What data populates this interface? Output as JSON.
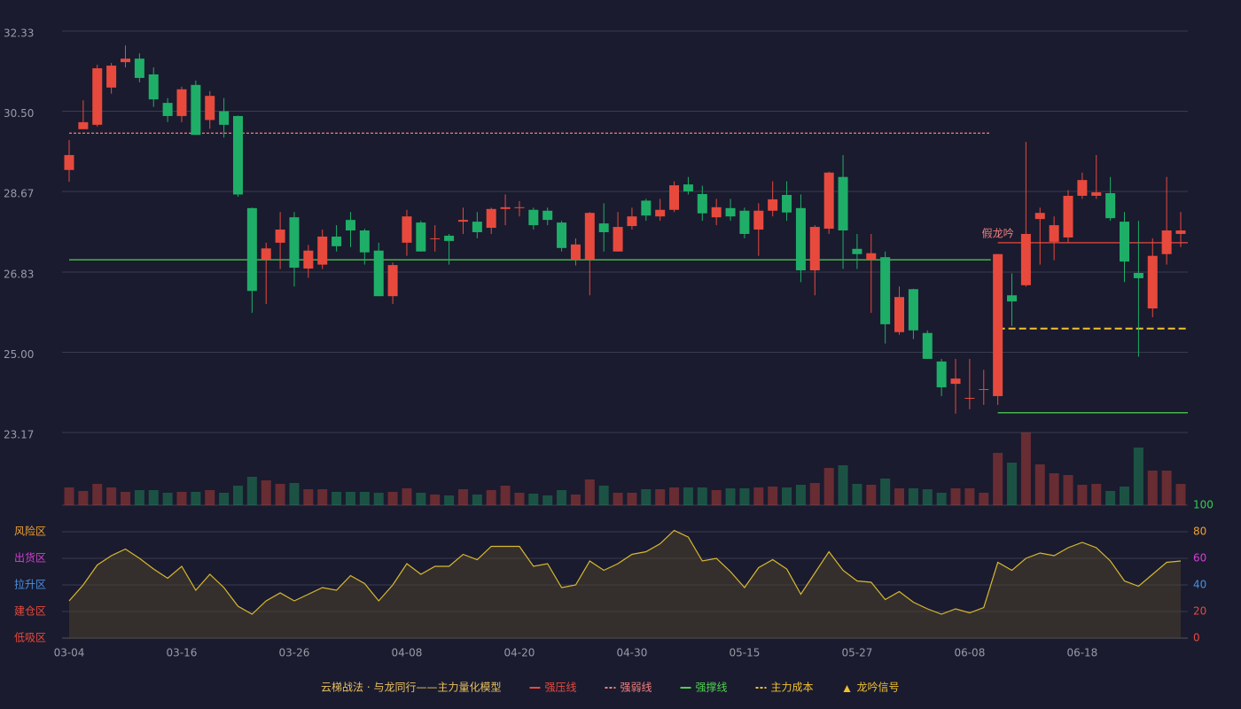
{
  "chart_data": {
    "type": "candlestick",
    "categories": [
      "03-04",
      null,
      null,
      null,
      null,
      null,
      null,
      null,
      "03-16",
      null,
      null,
      null,
      null,
      null,
      null,
      null,
      "03-26",
      null,
      null,
      null,
      null,
      null,
      null,
      null,
      "04-08",
      null,
      null,
      null,
      null,
      null,
      null,
      null,
      "04-20",
      null,
      null,
      null,
      null,
      null,
      null,
      null,
      "04-30",
      null,
      null,
      null,
      null,
      null,
      null,
      null,
      "05-15",
      null,
      null,
      null,
      null,
      null,
      null,
      null,
      "05-27",
      null,
      null,
      null,
      null,
      null,
      null,
      null,
      "06-08",
      null,
      null,
      null,
      null,
      null,
      null,
      null,
      "06-18",
      null,
      null,
      null,
      null,
      null,
      null,
      null
    ],
    "open": [
      29.16,
      30.09,
      30.19,
      31.04,
      31.62,
      31.7,
      31.34,
      30.69,
      30.39,
      31.1,
      30.3,
      30.5,
      30.39,
      28.29,
      27.11,
      27.5,
      28.08,
      26.91,
      27.0,
      27.64,
      28.02,
      27.78,
      27.32,
      26.28,
      27.5,
      27.96,
      27.58,
      27.66,
      27.98,
      27.98,
      27.84,
      28.27,
      28.29,
      28.25,
      28.23,
      27.96,
      27.11,
      27.11,
      27.94,
      27.3,
      27.88,
      28.46,
      28.1,
      28.25,
      28.83,
      28.61,
      28.08,
      28.29,
      28.23,
      27.8,
      28.23,
      28.59,
      28.29,
      26.87,
      27.82,
      29.0,
      27.36,
      27.11,
      27.17,
      25.46,
      26.44,
      25.44,
      24.79,
      24.28,
      23.94,
      24.14,
      24.0,
      26.3,
      26.53,
      28.04,
      27.52,
      27.62,
      28.57,
      28.57,
      28.63,
      27.98,
      26.81,
      26.0,
      27.24,
      27.7
    ],
    "high": [
      29.84,
      30.75,
      31.56,
      31.6,
      32.0,
      31.82,
      31.5,
      30.8,
      31.06,
      31.2,
      30.96,
      30.8,
      30.4,
      28.3,
      27.5,
      28.2,
      28.2,
      27.45,
      27.8,
      27.9,
      28.2,
      27.82,
      27.5,
      27.05,
      28.25,
      28.0,
      27.9,
      27.7,
      28.3,
      28.2,
      28.3,
      28.6,
      28.45,
      28.3,
      28.3,
      28.0,
      27.6,
      28.2,
      28.4,
      28.2,
      28.3,
      28.5,
      28.5,
      28.9,
      29.0,
      28.8,
      28.5,
      28.5,
      28.3,
      28.4,
      28.9,
      28.9,
      28.6,
      27.9,
      29.12,
      29.5,
      27.7,
      27.7,
      27.3,
      26.5,
      26.45,
      25.5,
      24.85,
      24.85,
      24.85,
      24.6,
      27.24,
      26.8,
      29.8,
      28.3,
      28.1,
      28.7,
      29.1,
      29.5,
      29.0,
      28.2,
      28.0,
      27.6,
      29.0,
      28.2
    ],
    "low": [
      28.89,
      30.09,
      30.15,
      30.9,
      31.5,
      31.16,
      30.6,
      30.25,
      30.25,
      29.96,
      30.1,
      29.9,
      28.55,
      25.9,
      26.1,
      26.9,
      26.5,
      26.7,
      26.9,
      27.3,
      27.4,
      27.0,
      26.28,
      26.1,
      27.2,
      27.3,
      27.3,
      27.0,
      27.7,
      27.6,
      27.7,
      27.9,
      28.1,
      27.8,
      27.9,
      27.3,
      26.98,
      26.3,
      27.3,
      27.3,
      27.8,
      28.0,
      28.0,
      28.2,
      28.6,
      28.0,
      27.9,
      28.0,
      27.6,
      27.2,
      28.1,
      28.0,
      26.6,
      26.3,
      27.7,
      26.9,
      26.9,
      25.9,
      25.2,
      25.4,
      25.3,
      24.85,
      24.0,
      23.6,
      23.7,
      23.8,
      23.8,
      25.6,
      26.5,
      27.0,
      27.1,
      27.5,
      28.5,
      28.5,
      28.0,
      26.6,
      24.9,
      25.8,
      27.0,
      27.4
    ],
    "close": [
      29.5,
      30.25,
      31.48,
      31.54,
      31.7,
      31.26,
      30.77,
      30.39,
      31.0,
      29.96,
      30.85,
      30.19,
      28.6,
      26.4,
      27.37,
      27.8,
      26.93,
      27.32,
      27.64,
      27.42,
      27.78,
      27.28,
      26.28,
      26.99,
      28.1,
      27.3,
      27.6,
      27.54,
      28.02,
      27.74,
      28.27,
      28.31,
      28.31,
      27.9,
      28.02,
      27.38,
      27.46,
      28.18,
      27.74,
      27.86,
      28.1,
      28.12,
      28.25,
      28.81,
      28.67,
      28.17,
      28.31,
      28.1,
      27.7,
      28.23,
      28.49,
      28.19,
      26.87,
      27.86,
      29.1,
      27.78,
      27.24,
      27.26,
      25.64,
      26.26,
      25.5,
      24.85,
      24.2,
      24.4,
      23.96,
      24.16,
      27.24,
      26.16,
      27.7,
      28.18,
      27.9,
      28.57,
      28.93,
      28.65,
      28.06,
      27.07,
      26.69,
      27.2,
      27.78,
      27.78
    ],
    "up_color": "#e8493d",
    "down_color": "#1fae68",
    "ylim": [
      23.17,
      32.33
    ],
    "yticks": [
      {
        "value": 32.33,
        "label": "32.33"
      },
      {
        "value": 30.5,
        "label": "30.50"
      },
      {
        "value": 28.67,
        "label": "28.67"
      },
      {
        "value": 26.83,
        "label": "26.83"
      },
      {
        "value": 25,
        "label": "25.00"
      },
      {
        "value": 23.17,
        "label": "23.17"
      }
    ],
    "grid": true,
    "volume": [
      20,
      16,
      24,
      20,
      15,
      17,
      17,
      14,
      15,
      15,
      17,
      14,
      22,
      32,
      28,
      24,
      25,
      18,
      18,
      15,
      15,
      15,
      14,
      15,
      19,
      14,
      12,
      11,
      18,
      12,
      17,
      22,
      14,
      13,
      11,
      17,
      12,
      29,
      22,
      14,
      14,
      18,
      18,
      20,
      20,
      20,
      17,
      19,
      19,
      20,
      21,
      20,
      23,
      25,
      42,
      45,
      24,
      23,
      30,
      19,
      19,
      18,
      14,
      19,
      19,
      14,
      59,
      48,
      82,
      46,
      36,
      34,
      23,
      24,
      16,
      21,
      65,
      39,
      39,
      24
    ],
    "indicator": {
      "color": "#d8b830",
      "values": [
        28,
        40,
        55,
        62,
        67,
        60,
        52,
        45,
        54,
        36,
        48,
        38,
        24,
        18,
        28,
        34,
        28,
        33,
        38,
        36,
        47,
        41,
        28,
        40,
        56,
        48,
        54,
        54,
        63,
        59,
        69,
        69,
        69,
        54,
        56,
        38,
        40,
        58,
        51,
        56,
        63,
        65,
        71,
        81,
        76,
        58,
        60,
        50,
        38,
        53,
        59,
        52,
        33,
        49,
        65,
        51,
        43,
        42,
        29,
        35,
        27,
        22,
        18,
        22,
        19,
        23,
        57,
        51,
        60,
        64,
        62,
        68,
        72,
        68,
        58,
        43,
        39,
        48,
        57,
        58
      ]
    },
    "y2lim": [
      0,
      100
    ],
    "y2ticks": [
      {
        "value": 0,
        "color": "#e8493d"
      },
      {
        "value": 20,
        "color": "#e8493d"
      },
      {
        "value": 40,
        "color": "#4c8fe0"
      },
      {
        "value": 60,
        "color": "#d040d0"
      },
      {
        "value": 80,
        "color": "#f0a030"
      },
      {
        "value": 100,
        "color": "#30d050"
      }
    ],
    "zones": [
      {
        "label": "风险区",
        "value": 80,
        "color": "#f0a030"
      },
      {
        "label": "出货区",
        "value": 60,
        "color": "#d040d0"
      },
      {
        "label": "拉升区",
        "value": 40,
        "color": "#4c8fe0"
      },
      {
        "label": "建仓区",
        "value": 20,
        "color": "#e8493d"
      },
      {
        "label": "低吸区",
        "value": 0,
        "color": "#e8493d"
      }
    ],
    "legend_title": "云梯战法 · 与龙同行——主力量化模型",
    "legend": [
      {
        "name": "强压线",
        "color": "#e8493d",
        "style": "solid"
      },
      {
        "name": "强弱线",
        "color": "#f08080",
        "style": "dashed"
      },
      {
        "name": "强撑线",
        "color": "#50d050",
        "style": "solid"
      },
      {
        "name": "主力成本",
        "color": "#f0c030",
        "style": "dashed"
      },
      {
        "name": "龙吟信号",
        "color": "#f0c030",
        "style": "triangle"
      }
    ],
    "levels": [
      {
        "legend": 1,
        "value": 30.0,
        "start": 0,
        "end": 65
      },
      {
        "legend": 2,
        "value": 27.11,
        "start": 0,
        "end": 65
      },
      {
        "legend": 0,
        "value": 27.5,
        "start": 66,
        "end": 79
      },
      {
        "legend": 2,
        "value": 23.62,
        "start": 66,
        "end": 79
      },
      {
        "legend": 3,
        "value": 25.54,
        "start": 66,
        "end": 79
      }
    ],
    "signals": [
      {
        "label": "假龙吟",
        "index": 66,
        "value": 27.5,
        "color": "#f08080"
      }
    ]
  }
}
